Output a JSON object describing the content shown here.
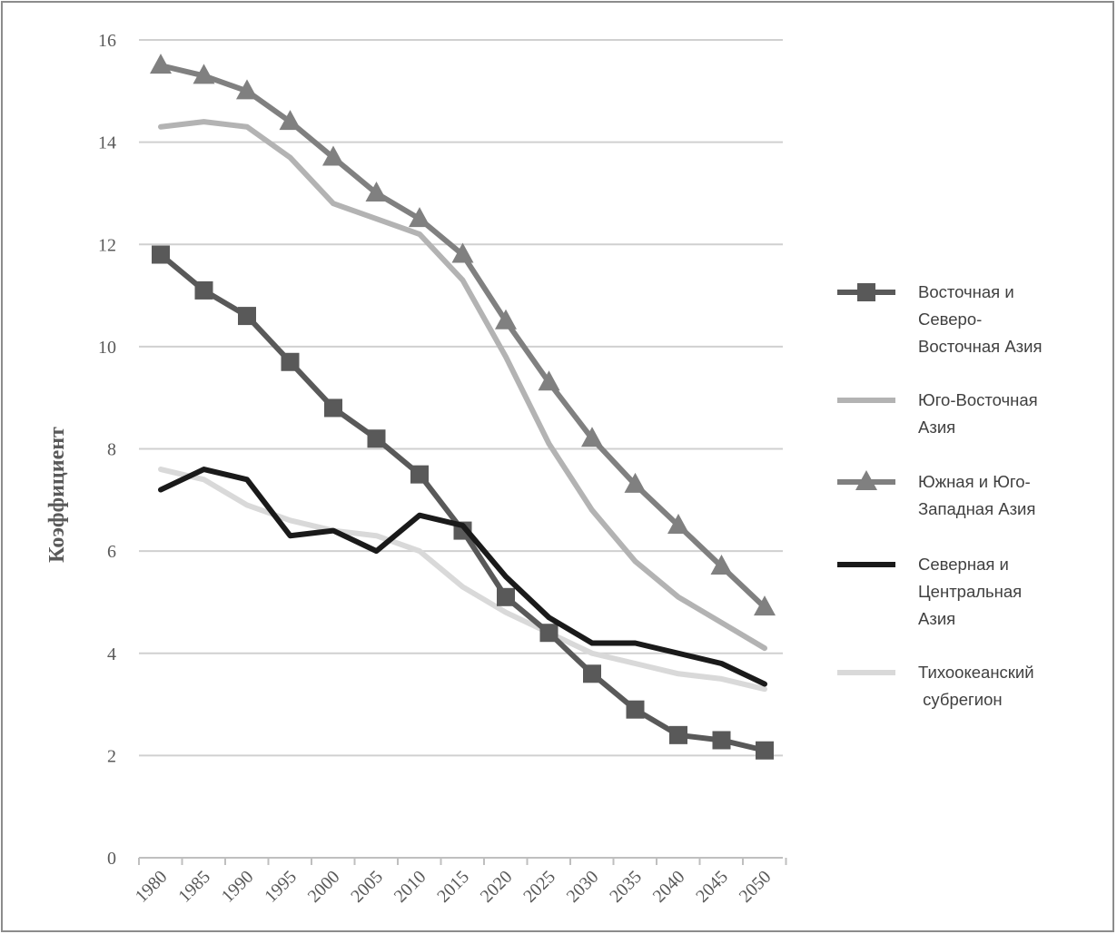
{
  "chart_data": {
    "type": "line",
    "title": "",
    "xlabel": "",
    "ylabel": "Коэффициент",
    "ylim": [
      0,
      16
    ],
    "yticks": [
      0,
      2,
      4,
      6,
      8,
      10,
      12,
      14,
      16
    ],
    "categories": [
      "1980",
      "1985",
      "1990",
      "1995",
      "2000",
      "2005",
      "2010",
      "2015",
      "2020",
      "2025",
      "2030",
      "2035",
      "2040",
      "2045",
      "2050"
    ],
    "grid": true,
    "legend_position": "right",
    "series": [
      {
        "name": "Восточная и Северо-Восточная Азия",
        "legend_lines": [
          "Восточная и",
          "Северо-",
          "Восточная Азия"
        ],
        "color": "#595959",
        "marker": "square",
        "values": [
          11.8,
          11.1,
          10.6,
          9.7,
          8.8,
          8.2,
          7.5,
          6.4,
          5.1,
          4.4,
          3.6,
          2.9,
          2.4,
          2.3,
          2.1
        ]
      },
      {
        "name": "Юго-Восточная Азия",
        "legend_lines": [
          "Юго-Восточная",
          "Азия"
        ],
        "color": "#b3b3b3",
        "marker": "none",
        "values": [
          14.3,
          14.4,
          14.3,
          13.7,
          12.8,
          12.5,
          12.2,
          11.3,
          9.8,
          8.1,
          6.8,
          5.8,
          5.1,
          4.6,
          4.1
        ]
      },
      {
        "name": "Южная и Юго-Западная Азия",
        "legend_lines": [
          "Южная и Юго-",
          "Западная Азия"
        ],
        "color": "#808080",
        "marker": "triangle",
        "values": [
          15.5,
          15.3,
          15.0,
          14.4,
          13.7,
          13.0,
          12.5,
          11.8,
          10.5,
          9.3,
          8.2,
          7.3,
          6.5,
          5.7,
          4.9
        ]
      },
      {
        "name": "Северная и Центральная Азия",
        "legend_lines": [
          "Северная и",
          "Центральная",
          "Азия"
        ],
        "color": "#1a1a1a",
        "marker": "none",
        "values": [
          7.2,
          7.6,
          7.4,
          6.3,
          6.4,
          6.0,
          6.7,
          6.5,
          5.5,
          4.7,
          4.2,
          4.2,
          4.0,
          3.8,
          3.4
        ]
      },
      {
        "name": "Тихоокеанский субрегион",
        "legend_lines": [
          "Тихоокеанский",
          " субрегион"
        ],
        "color": "#d9d9d9",
        "marker": "none",
        "values": [
          7.6,
          7.4,
          6.9,
          6.6,
          6.4,
          6.3,
          6.0,
          5.3,
          4.8,
          4.4,
          4.0,
          3.8,
          3.6,
          3.5,
          3.3
        ]
      }
    ]
  }
}
